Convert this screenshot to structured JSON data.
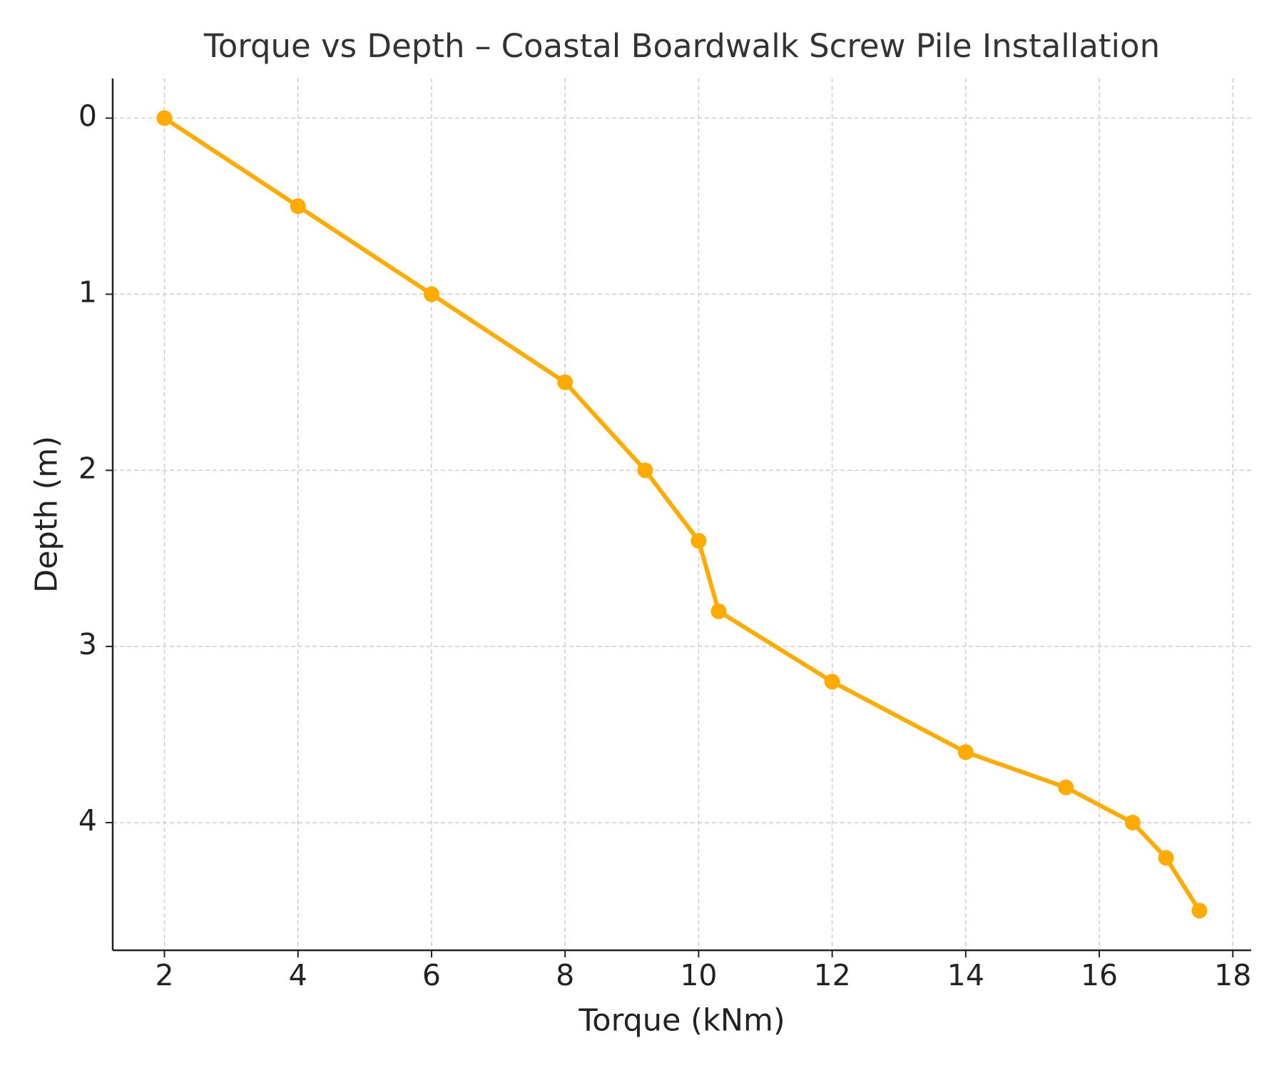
{
  "chart_data": {
    "type": "line",
    "title": "Torque vs Depth – Coastal Boardwalk Screw Pile Installation",
    "x_label": "Torque (kNm)",
    "y_label": "Depth (m)",
    "x": [
      2,
      4,
      6,
      8,
      9.2,
      10,
      10.3,
      12,
      14,
      15.5,
      16.5,
      17,
      17.5
    ],
    "series": [
      {
        "name": "Depth",
        "color": "#ffab00",
        "values": [
          0,
          0.5,
          1,
          1.5,
          2,
          2.4,
          2.8,
          3.2,
          3.6,
          3.8,
          4,
          4.2,
          4.5
        ]
      }
    ],
    "xlim": [
      1.225,
      18.275
    ],
    "ylim": [
      -0.225,
      4.725
    ],
    "y_inverted": true,
    "xticks": [
      2,
      4,
      6,
      8,
      10,
      12,
      14,
      16,
      18
    ],
    "yticks": [
      0,
      1,
      2,
      3,
      4
    ],
    "grid": true,
    "markers": true
  }
}
